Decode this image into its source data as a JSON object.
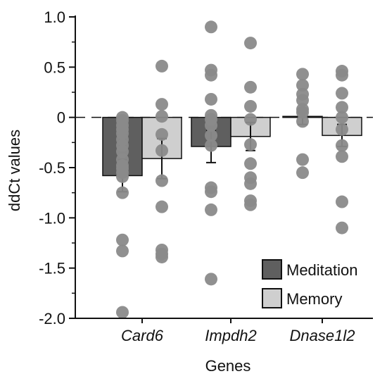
{
  "chart_data": {
    "type": "bar",
    "title": "",
    "xlabel": "Genes",
    "ylabel": "ddCt values",
    "ylim": [
      -2.0,
      1.0
    ],
    "yticks": [
      1.0,
      0.5,
      0,
      -0.5,
      -1.0,
      -1.5,
      -2.0
    ],
    "ytick_labels": [
      "1.0",
      "0.5",
      "0",
      "-0.5",
      "-1.0",
      "-1.5",
      "-2.0"
    ],
    "categories": [
      "Card6",
      "Impdh2",
      "Dnase1l2"
    ],
    "zero_line": "dashed",
    "grid": false,
    "legend_position": "bottom-right",
    "series": [
      {
        "name": "Meditation",
        "color": "#5f5f5f",
        "values": [
          -0.58,
          -0.29,
          0.01
        ],
        "errors": [
          0.16,
          0.16,
          0.08
        ],
        "points": [
          [
            0.0,
            -0.03,
            -0.08,
            -0.12,
            -0.16,
            -0.22,
            -0.28,
            -0.34,
            -0.42,
            -0.48,
            -0.51,
            -0.55,
            -0.59,
            -0.75,
            -1.22,
            -1.33,
            -1.94
          ],
          [
            0.9,
            0.47,
            0.42,
            0.18,
            0.02,
            -0.02,
            -0.08,
            -0.18,
            -0.28,
            -0.7,
            -0.74,
            -0.92,
            -1.61
          ],
          [
            0.43,
            0.32,
            0.23,
            0.17,
            0.08,
            0.05,
            -0.04,
            -0.42,
            -0.55
          ]
        ]
      },
      {
        "name": "Memory",
        "color": "#cfcfcf",
        "values": [
          -0.41,
          -0.19,
          -0.18
        ],
        "errors": [
          0.2,
          0.14,
          0.11
        ],
        "points": [
          [
            0.51,
            0.13,
            0.01,
            -0.17,
            -0.33,
            -0.63,
            -0.89,
            -1.32,
            -1.36,
            -1.39
          ],
          [
            0.74,
            0.3,
            0.11,
            -0.02,
            -0.27,
            -0.46,
            -0.6,
            -0.66,
            -0.83,
            -0.87
          ],
          [
            0.46,
            0.42,
            0.24,
            0.1,
            0.0,
            -0.12,
            -0.28,
            -0.39,
            -0.84,
            -1.1
          ]
        ]
      }
    ]
  }
}
